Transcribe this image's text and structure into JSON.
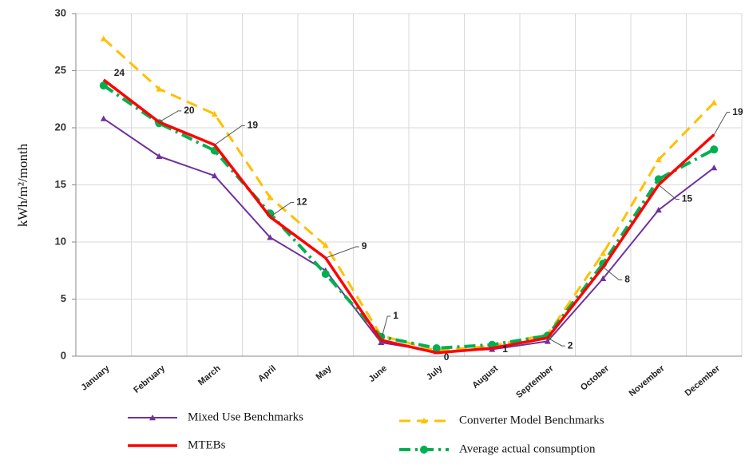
{
  "chart_data": {
    "type": "line",
    "y_label": "kWh/m²/month",
    "categories": [
      "January",
      "February",
      "March",
      "April",
      "May",
      "June",
      "July",
      "August",
      "September",
      "October",
      "November",
      "December"
    ],
    "ylim": [
      0,
      30
    ],
    "yticks": [
      0,
      5,
      10,
      15,
      20,
      25,
      30
    ],
    "grid": true,
    "legend": "bottom",
    "series": [
      {
        "name": "Mixed Use Benchmarks",
        "color": "#7030a0",
        "style": "solid-triangle",
        "values": [
          20.8,
          17.5,
          15.8,
          10.4,
          7.5,
          1.2,
          0.4,
          0.6,
          1.3,
          6.8,
          12.8,
          16.5
        ]
      },
      {
        "name": "Converter Model Benchmarks",
        "color": "#ffc000",
        "style": "dashed-triangle",
        "values": [
          27.8,
          23.4,
          21.2,
          13.9,
          9.7,
          1.8,
          0.5,
          0.9,
          1.9,
          9.0,
          17.2,
          22.2
        ]
      },
      {
        "name": "MTEBs",
        "color": "#ff0000",
        "style": "thick-solid",
        "values": [
          24.2,
          20.5,
          18.5,
          12.2,
          8.6,
          1.4,
          0.3,
          0.7,
          1.6,
          7.8,
          15.0,
          19.4
        ],
        "value_labels": [
          "24",
          "20",
          "19",
          "12",
          "9",
          "1",
          "0",
          "1",
          "2",
          "8",
          "15",
          "19"
        ]
      },
      {
        "name": "Average actual consumption",
        "color": "#00b050",
        "style": "dashdot-circle",
        "values": [
          23.7,
          20.4,
          18.0,
          12.5,
          7.2,
          1.7,
          0.7,
          1.0,
          1.8,
          8.1,
          15.5,
          18.1
        ]
      }
    ]
  }
}
